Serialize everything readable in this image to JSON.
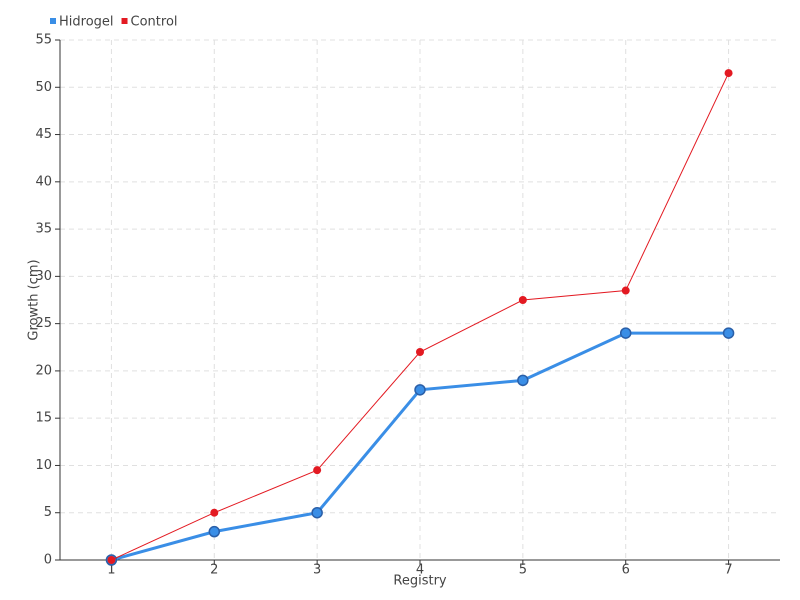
{
  "chart_data": {
    "type": "line",
    "x_label": "Registry",
    "y_label": "Growth (cm)",
    "x": [
      1,
      2,
      3,
      4,
      5,
      6,
      7
    ],
    "xlim": [
      0.5,
      7.5
    ],
    "xticks": [
      1,
      2,
      3,
      4,
      5,
      6,
      7
    ],
    "ylim": [
      0,
      55
    ],
    "yticks": [
      0,
      5,
      10,
      15,
      20,
      25,
      30,
      35,
      40,
      45,
      50,
      55
    ],
    "grid": true,
    "legend": "top-left",
    "series": [
      {
        "name": "Hidrogel",
        "color": "#3a8ee6",
        "values": [
          0,
          3,
          5,
          18,
          19,
          24,
          24
        ]
      },
      {
        "name": "Control",
        "color": "#e31a22",
        "values": [
          0,
          5,
          9.5,
          22,
          27.5,
          28.5,
          51.5
        ]
      }
    ]
  }
}
